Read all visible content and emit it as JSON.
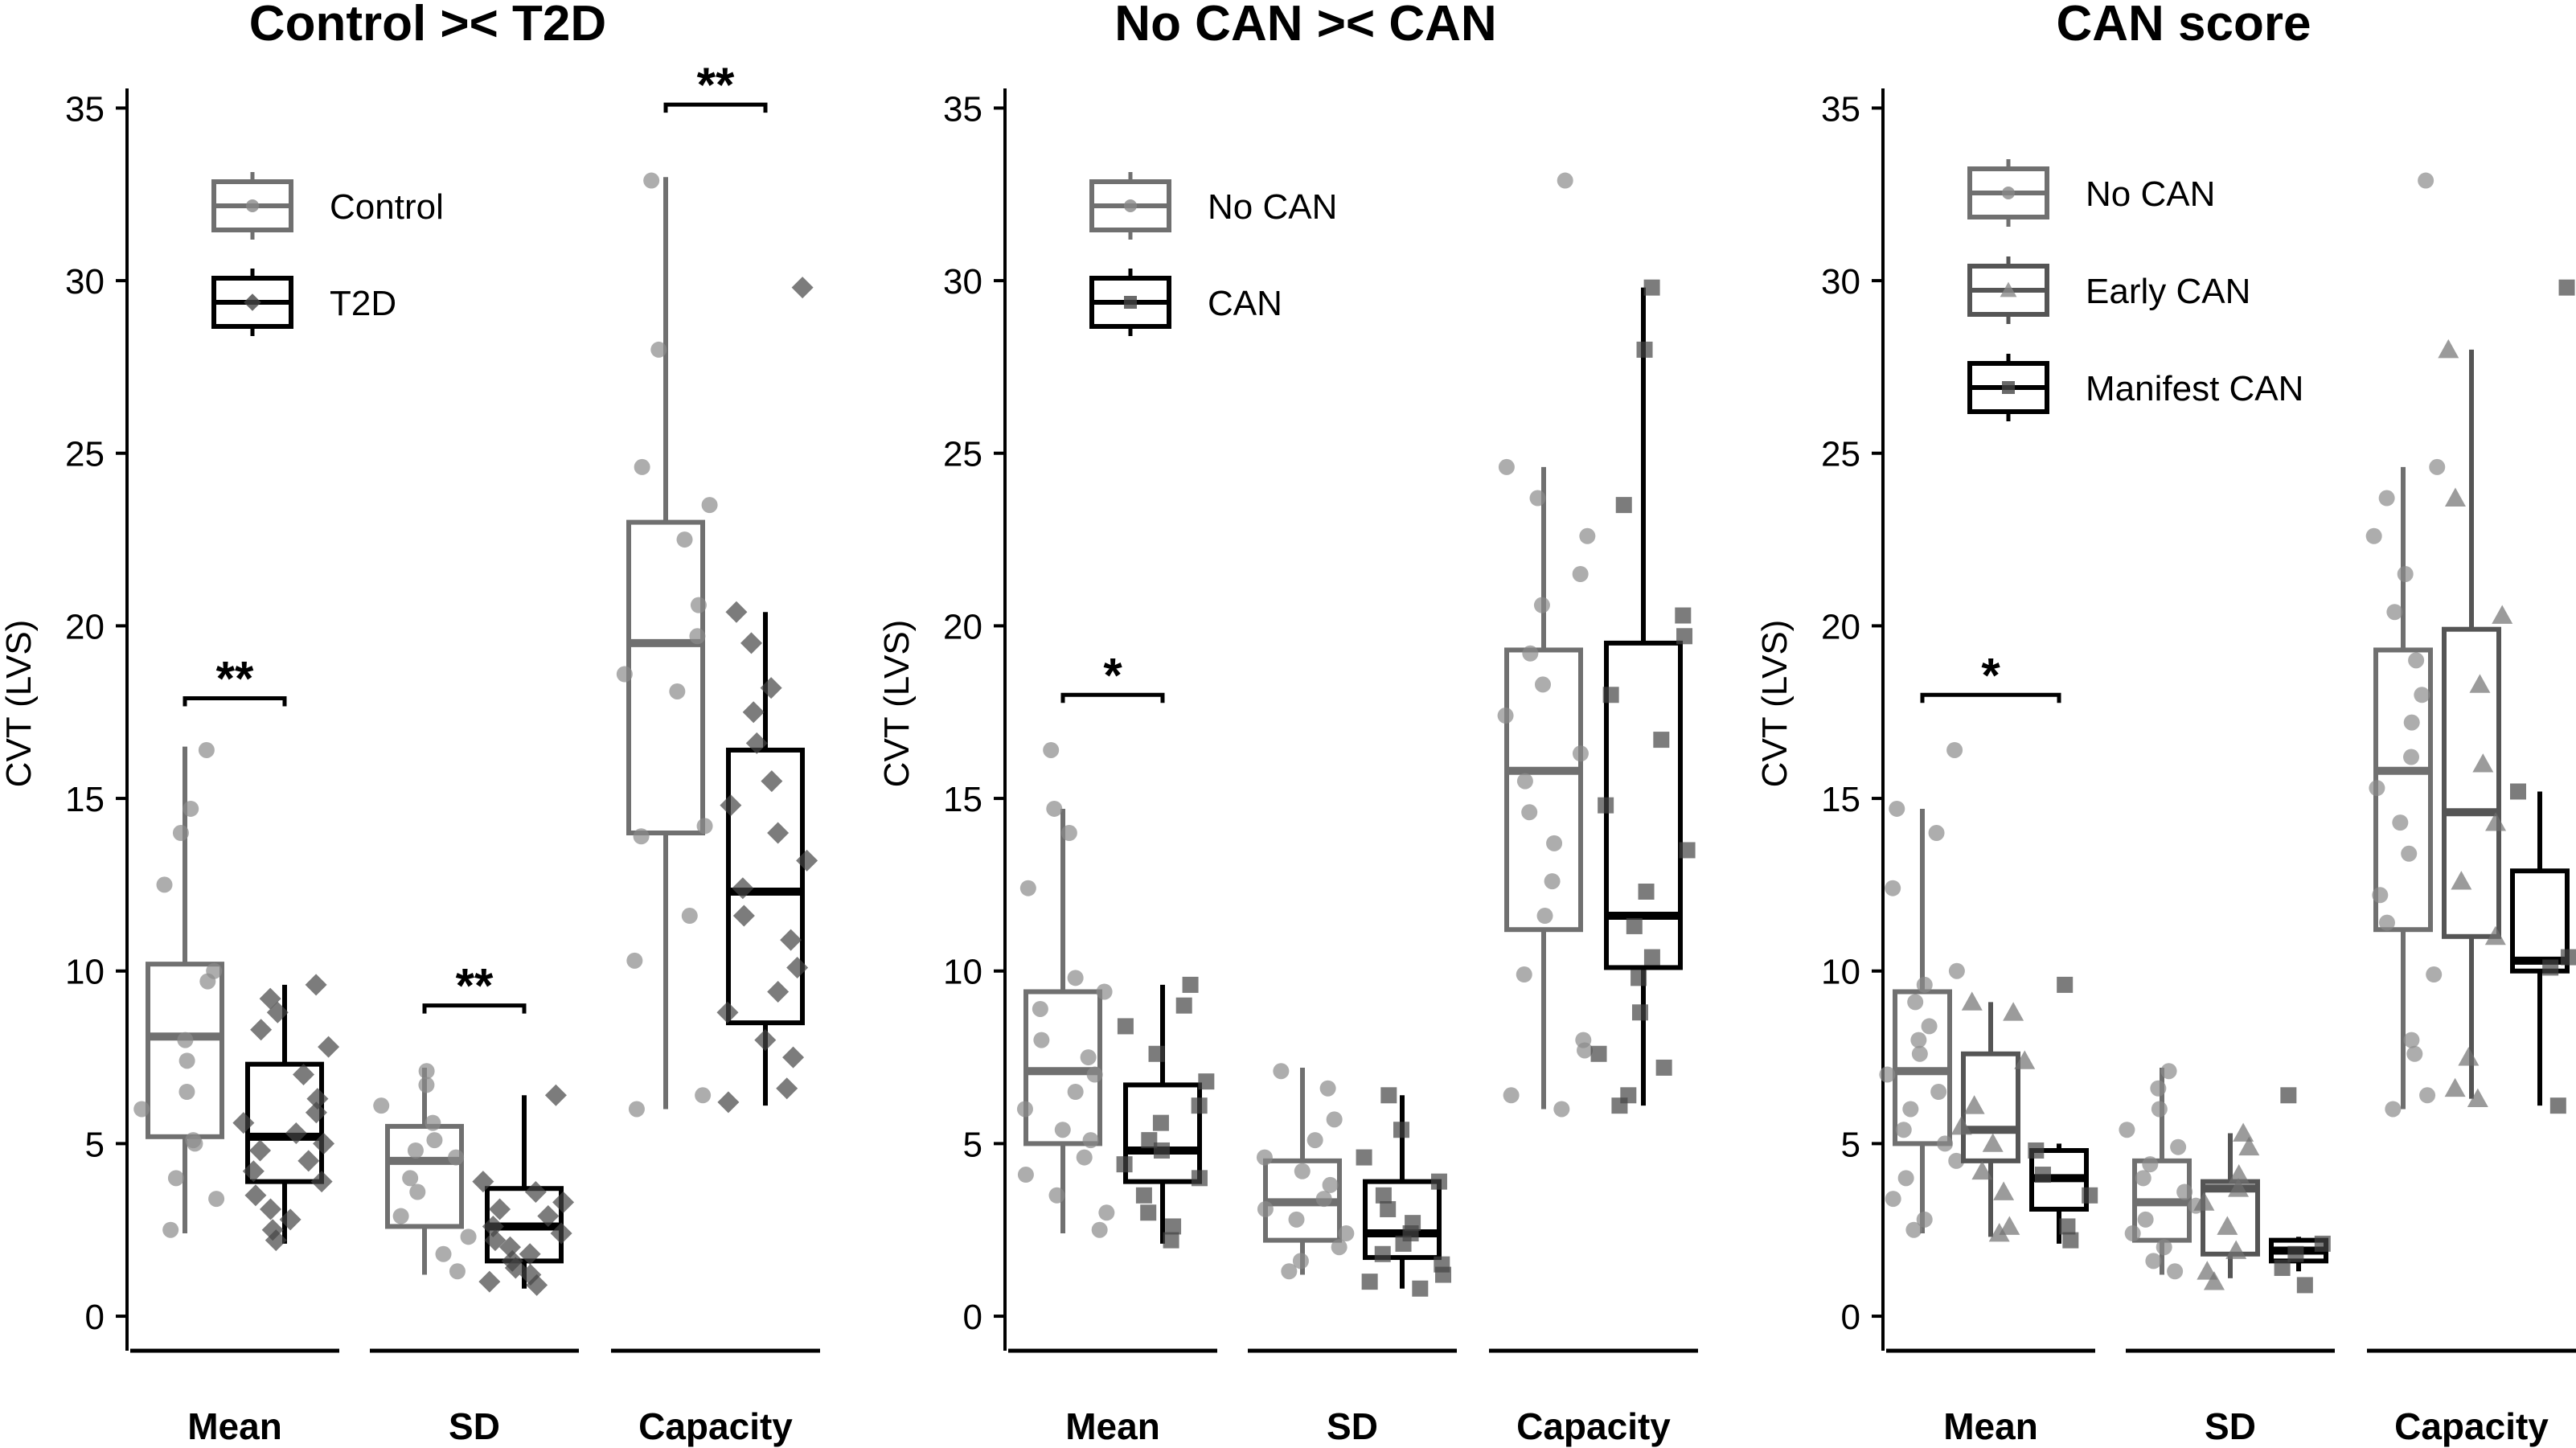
{
  "figure": {
    "panels_note": "Three box-plot panels of CVT (LVS) by metric"
  },
  "colors": {
    "black": "#000000",
    "dark_gray": "#555555",
    "gray": "#707070",
    "light_point": "#a6a6a6",
    "axis": "#000000"
  },
  "chart_data": [
    {
      "type": "box",
      "title": "Control >< T2D",
      "ylabel": "CVT (LVS)",
      "ylim": [
        -1,
        36.5
      ],
      "yticks": [
        0,
        5,
        10,
        15,
        20,
        25,
        30,
        35
      ],
      "categories": [
        "Mean",
        "SD",
        "Capacity"
      ],
      "legend": {
        "position": "top-left",
        "entries": [
          {
            "name": "Control",
            "color": "#707070",
            "marker": "circle"
          },
          {
            "name": "T2D",
            "color": "#000000",
            "marker": "diamond"
          }
        ]
      },
      "series": [
        {
          "name": "Control",
          "color": "#707070",
          "marker": "circle",
          "boxes": [
            {
              "category": "Mean",
              "whisker_low": 2.4,
              "q1": 5.2,
              "median": 8.1,
              "q3": 10.2,
              "whisker_high": 16.5,
              "points": [
                16.4,
                14.7,
                14.0,
                12.5,
                10.0,
                9.7,
                8.0,
                7.4,
                6.5,
                6.0,
                5.1,
                5.0,
                4.0,
                3.4,
                2.5
              ]
            },
            {
              "category": "SD",
              "whisker_low": 1.2,
              "q1": 2.6,
              "median": 4.5,
              "q3": 5.5,
              "whisker_high": 7.2,
              "points": [
                7.1,
                6.7,
                6.1,
                5.6,
                5.1,
                4.8,
                4.6,
                4.0,
                3.6,
                2.9,
                2.3,
                1.8,
                1.3
              ]
            },
            {
              "category": "Capacity",
              "whisker_low": 6.0,
              "q1": 14.0,
              "median": 19.5,
              "q3": 23.0,
              "whisker_high": 33.0,
              "points": [
                32.9,
                28.0,
                24.6,
                23.5,
                22.5,
                20.6,
                19.7,
                18.6,
                18.1,
                14.2,
                13.9,
                11.6,
                10.3,
                6.4,
                6.0
              ]
            }
          ]
        },
        {
          "name": "T2D",
          "color": "#000000",
          "marker": "diamond",
          "boxes": [
            {
              "category": "Mean",
              "whisker_low": 2.1,
              "q1": 3.9,
              "median": 5.2,
              "q3": 7.3,
              "whisker_high": 9.6,
              "points": [
                9.6,
                9.2,
                8.8,
                8.3,
                7.8,
                7.0,
                6.3,
                5.9,
                5.6,
                5.3,
                5.0,
                4.8,
                4.5,
                4.2,
                3.9,
                3.5,
                3.1,
                2.8,
                2.5,
                2.2
              ]
            },
            {
              "category": "SD",
              "whisker_low": 0.8,
              "q1": 1.6,
              "median": 2.6,
              "q3": 3.7,
              "whisker_high": 6.4,
              "points": [
                6.4,
                3.9,
                3.6,
                3.3,
                3.1,
                2.9,
                2.6,
                2.4,
                2.2,
                2.0,
                1.8,
                1.6,
                1.4,
                1.2,
                1.0,
                0.9
              ]
            },
            {
              "category": "Capacity",
              "whisker_low": 6.1,
              "q1": 8.5,
              "median": 12.3,
              "q3": 16.4,
              "whisker_high": 20.4,
              "points": [
                29.8,
                20.4,
                19.5,
                18.2,
                17.5,
                16.6,
                15.5,
                14.8,
                14.0,
                13.2,
                12.4,
                11.6,
                10.9,
                10.1,
                9.4,
                8.8,
                8.0,
                7.5,
                6.6,
                6.2
              ]
            }
          ]
        }
      ],
      "significance": [
        {
          "category": "Mean",
          "label": "**",
          "y": 17.9
        },
        {
          "category": "SD",
          "label": "**",
          "y": 9.0
        },
        {
          "category": "Capacity",
          "label": "**",
          "y": 35.1
        }
      ]
    },
    {
      "type": "box",
      "title": "No CAN >< CAN",
      "ylabel": "CVT (LVS)",
      "ylim": [
        -1,
        36.5
      ],
      "yticks": [
        0,
        5,
        10,
        15,
        20,
        25,
        30,
        35
      ],
      "categories": [
        "Mean",
        "SD",
        "Capacity"
      ],
      "legend": {
        "position": "top-left",
        "entries": [
          {
            "name": "No CAN",
            "color": "#707070",
            "marker": "circle"
          },
          {
            "name": "CAN",
            "color": "#000000",
            "marker": "square"
          }
        ]
      },
      "series": [
        {
          "name": "No CAN",
          "color": "#707070",
          "marker": "circle",
          "boxes": [
            {
              "category": "Mean",
              "whisker_low": 2.4,
              "q1": 5.0,
              "median": 7.1,
              "q3": 9.4,
              "whisker_high": 14.7,
              "points": [
                16.4,
                14.7,
                14.0,
                12.4,
                9.8,
                9.4,
                8.9,
                8.0,
                7.5,
                7.0,
                6.5,
                6.0,
                5.4,
                5.1,
                4.6,
                4.1,
                3.5,
                3.0,
                2.5
              ]
            },
            {
              "category": "SD",
              "whisker_low": 1.2,
              "q1": 2.2,
              "median": 3.3,
              "q3": 4.5,
              "whisker_high": 7.2,
              "points": [
                7.1,
                6.6,
                5.7,
                5.1,
                4.6,
                4.2,
                3.8,
                3.4,
                3.1,
                2.8,
                2.4,
                2.0,
                1.6,
                1.3
              ]
            },
            {
              "category": "Capacity",
              "whisker_low": 6.0,
              "q1": 11.2,
              "median": 15.8,
              "q3": 19.3,
              "whisker_high": 24.6,
              "points": [
                32.9,
                24.6,
                23.7,
                22.6,
                21.5,
                20.6,
                19.2,
                18.3,
                17.4,
                16.3,
                15.5,
                14.6,
                13.7,
                12.6,
                11.6,
                9.9,
                8.0,
                7.7,
                6.4,
                6.0
              ]
            }
          ]
        },
        {
          "name": "CAN",
          "color": "#000000",
          "marker": "square",
          "boxes": [
            {
              "category": "Mean",
              "whisker_low": 2.1,
              "q1": 3.9,
              "median": 4.8,
              "q3": 6.7,
              "whisker_high": 9.6,
              "points": [
                9.6,
                9.0,
                8.4,
                7.6,
                6.8,
                6.1,
                5.6,
                5.1,
                4.8,
                4.4,
                4.0,
                3.5,
                3.0,
                2.6,
                2.2
              ]
            },
            {
              "category": "SD",
              "whisker_low": 0.8,
              "q1": 1.7,
              "median": 2.4,
              "q3": 3.9,
              "whisker_high": 6.4,
              "points": [
                6.4,
                5.4,
                4.6,
                3.9,
                3.5,
                3.1,
                2.7,
                2.4,
                2.1,
                1.8,
                1.5,
                1.2,
                1.0,
                0.8
              ]
            },
            {
              "category": "Capacity",
              "whisker_low": 6.1,
              "q1": 10.1,
              "median": 11.6,
              "q3": 19.5,
              "whisker_high": 29.8,
              "points": [
                29.8,
                28.0,
                23.5,
                20.3,
                19.7,
                18.0,
                16.7,
                14.8,
                13.5,
                12.3,
                11.3,
                10.4,
                9.8,
                8.8,
                7.6,
                7.2,
                6.4,
                6.1
              ]
            }
          ]
        }
      ],
      "significance": [
        {
          "category": "Mean",
          "label": "*",
          "y": 18.0
        }
      ]
    },
    {
      "type": "box",
      "title": "CAN score",
      "ylabel": "CVT (LVS)",
      "ylim": [
        -1,
        36.5
      ],
      "yticks": [
        0,
        5,
        10,
        15,
        20,
        25,
        30,
        35
      ],
      "categories": [
        "Mean",
        "SD",
        "Capacity"
      ],
      "legend": {
        "position": "top-left",
        "entries": [
          {
            "name": "No CAN",
            "color": "#707070",
            "marker": "circle"
          },
          {
            "name": "Early CAN",
            "color": "#555555",
            "marker": "triangle"
          },
          {
            "name": "Manifest CAN",
            "color": "#000000",
            "marker": "square"
          }
        ]
      },
      "series": [
        {
          "name": "No CAN",
          "color": "#707070",
          "marker": "circle",
          "boxes": [
            {
              "category": "Mean",
              "whisker_low": 2.4,
              "q1": 5.0,
              "median": 7.1,
              "q3": 9.4,
              "whisker_high": 14.7,
              "points": [
                16.4,
                14.7,
                14.0,
                12.4,
                10.0,
                9.6,
                9.1,
                8.4,
                8.0,
                7.6,
                7.0,
                6.5,
                6.0,
                5.4,
                5.0,
                4.5,
                4.0,
                3.4,
                2.8,
                2.5
              ]
            },
            {
              "category": "SD",
              "whisker_low": 1.2,
              "q1": 2.2,
              "median": 3.3,
              "q3": 4.5,
              "whisker_high": 7.2,
              "points": [
                7.1,
                6.6,
                6.0,
                5.4,
                4.9,
                4.4,
                4.0,
                3.6,
                3.2,
                2.8,
                2.4,
                2.0,
                1.6,
                1.3
              ]
            },
            {
              "category": "Capacity",
              "whisker_low": 6.0,
              "q1": 11.2,
              "median": 15.8,
              "q3": 19.3,
              "whisker_high": 24.6,
              "points": [
                32.9,
                24.6,
                23.7,
                22.6,
                21.5,
                20.4,
                19.0,
                18.0,
                17.2,
                16.2,
                15.3,
                14.3,
                13.4,
                12.2,
                11.4,
                9.9,
                8.0,
                7.6,
                6.4,
                6.0
              ]
            }
          ]
        },
        {
          "name": "Early CAN",
          "color": "#555555",
          "marker": "triangle",
          "boxes": [
            {
              "category": "Mean",
              "whisker_low": 2.3,
              "q1": 4.5,
              "median": 5.4,
              "q3": 7.6,
              "whisker_high": 9.1,
              "points": [
                9.1,
                8.8,
                7.4,
                6.1,
                5.5,
                5.0,
                4.2,
                3.6,
                2.6,
                2.4
              ]
            },
            {
              "category": "SD",
              "whisker_low": 1.1,
              "q1": 1.8,
              "median": 3.7,
              "q3": 3.9,
              "whisker_high": 5.3,
              "points": [
                5.3,
                4.9,
                4.1,
                3.7,
                3.3,
                2.6,
                1.9,
                1.3,
                1.0
              ]
            },
            {
              "category": "Capacity",
              "whisker_low": 6.3,
              "q1": 11.0,
              "median": 14.6,
              "q3": 19.9,
              "whisker_high": 28.0,
              "points": [
                28.0,
                23.7,
                20.3,
                18.3,
                16.0,
                14.3,
                12.6,
                11.0,
                7.5,
                6.6,
                6.3
              ]
            }
          ]
        },
        {
          "name": "Manifest CAN",
          "color": "#000000",
          "marker": "square",
          "boxes": [
            {
              "category": "Mean",
              "whisker_low": 2.1,
              "q1": 3.1,
              "median": 4.0,
              "q3": 4.8,
              "whisker_high": 5.0,
              "points": [
                9.6,
                4.8,
                4.1,
                3.5,
                2.6,
                2.2
              ]
            },
            {
              "category": "SD",
              "whisker_low": 1.3,
              "q1": 1.6,
              "median": 1.9,
              "q3": 2.2,
              "whisker_high": 2.3,
              "points": [
                6.4,
                2.1,
                1.8,
                1.4,
                0.9
              ]
            },
            {
              "category": "Capacity",
              "whisker_low": 6.1,
              "q1": 10.0,
              "median": 10.3,
              "q3": 12.9,
              "whisker_high": 15.2,
              "points": [
                29.8,
                15.2,
                10.4,
                10.1,
                6.1
              ]
            }
          ]
        }
      ],
      "significance": [
        {
          "category": "Mean",
          "label": "*",
          "y": 18.0,
          "span": "outer"
        }
      ]
    }
  ]
}
